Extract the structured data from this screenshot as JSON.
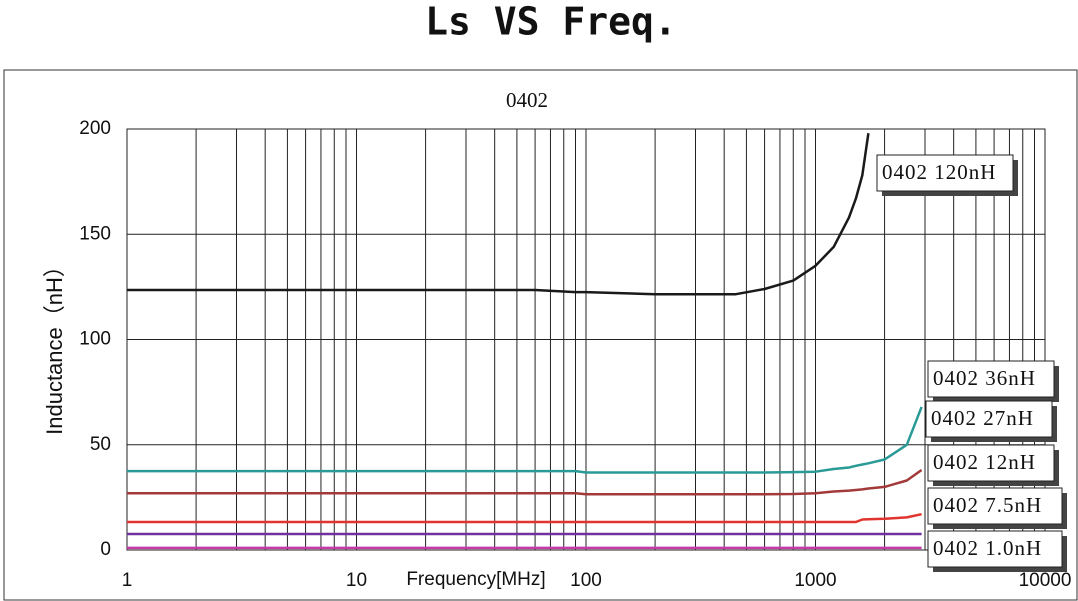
{
  "chart_data": {
    "type": "line",
    "title": "Ls VS Freq.",
    "subtitle": "0402",
    "x_label": "Frequency[MHz]",
    "y_label": "Inductance（nH）",
    "x": [
      1,
      10,
      60,
      90,
      100,
      200,
      450,
      600,
      800,
      1000,
      1200,
      1400,
      1500,
      1600,
      1700,
      2000,
      2500,
      2900
    ],
    "series": [
      {
        "name": "0402 120nH",
        "color": "#1a1a1a",
        "values": [
          123.5,
          123.5,
          123.5,
          122.5,
          122.5,
          121.5,
          121.5,
          124,
          128,
          135,
          144,
          158,
          167,
          178,
          198,
          null,
          null,
          null
        ]
      },
      {
        "name": "0402 36nH",
        "color": "#2a9a96",
        "values": [
          37.5,
          37.5,
          37.5,
          37.5,
          36.8,
          36.8,
          36.8,
          36.8,
          37,
          37.2,
          38.5,
          39.2,
          40,
          40.6,
          41.2,
          43,
          50,
          68
        ]
      },
      {
        "name": "0402 27nH",
        "color": "#a33a3a",
        "values": [
          27,
          27,
          27,
          27,
          26.5,
          26.5,
          26.5,
          26.5,
          26.6,
          27,
          27.8,
          28.2,
          28.5,
          28.8,
          29.2,
          30,
          33,
          38
        ]
      },
      {
        "name": "0402 12nH",
        "color": "#e0342f",
        "values": [
          13.3,
          13.3,
          13.3,
          13.3,
          13.3,
          13.3,
          13.3,
          13.3,
          13.3,
          13.3,
          13.3,
          13.3,
          13.3,
          14.5,
          14.6,
          14.8,
          15.5,
          17
        ]
      },
      {
        "name": "0402 7.5nH",
        "color": "#7030a0",
        "values": [
          7.6,
          7.6,
          7.6,
          7.6,
          7.6,
          7.6,
          7.6,
          7.6,
          7.6,
          7.6,
          7.6,
          7.6,
          7.6,
          7.6,
          7.6,
          7.6,
          7.6,
          7.6
        ]
      },
      {
        "name": "0402 1.0nH",
        "color": "#c83aa8",
        "values": [
          1,
          1,
          1,
          1,
          1,
          1,
          1,
          1,
          1,
          1,
          1,
          1,
          1,
          1,
          1,
          1,
          1,
          1
        ]
      }
    ],
    "xlim": [
      1,
      10000
    ],
    "xticks": [
      1,
      10,
      100,
      1000,
      10000
    ],
    "xscale": "log",
    "ylim": [
      0,
      200
    ],
    "yticks": [
      0,
      50,
      100,
      150,
      200
    ],
    "grid": true
  }
}
